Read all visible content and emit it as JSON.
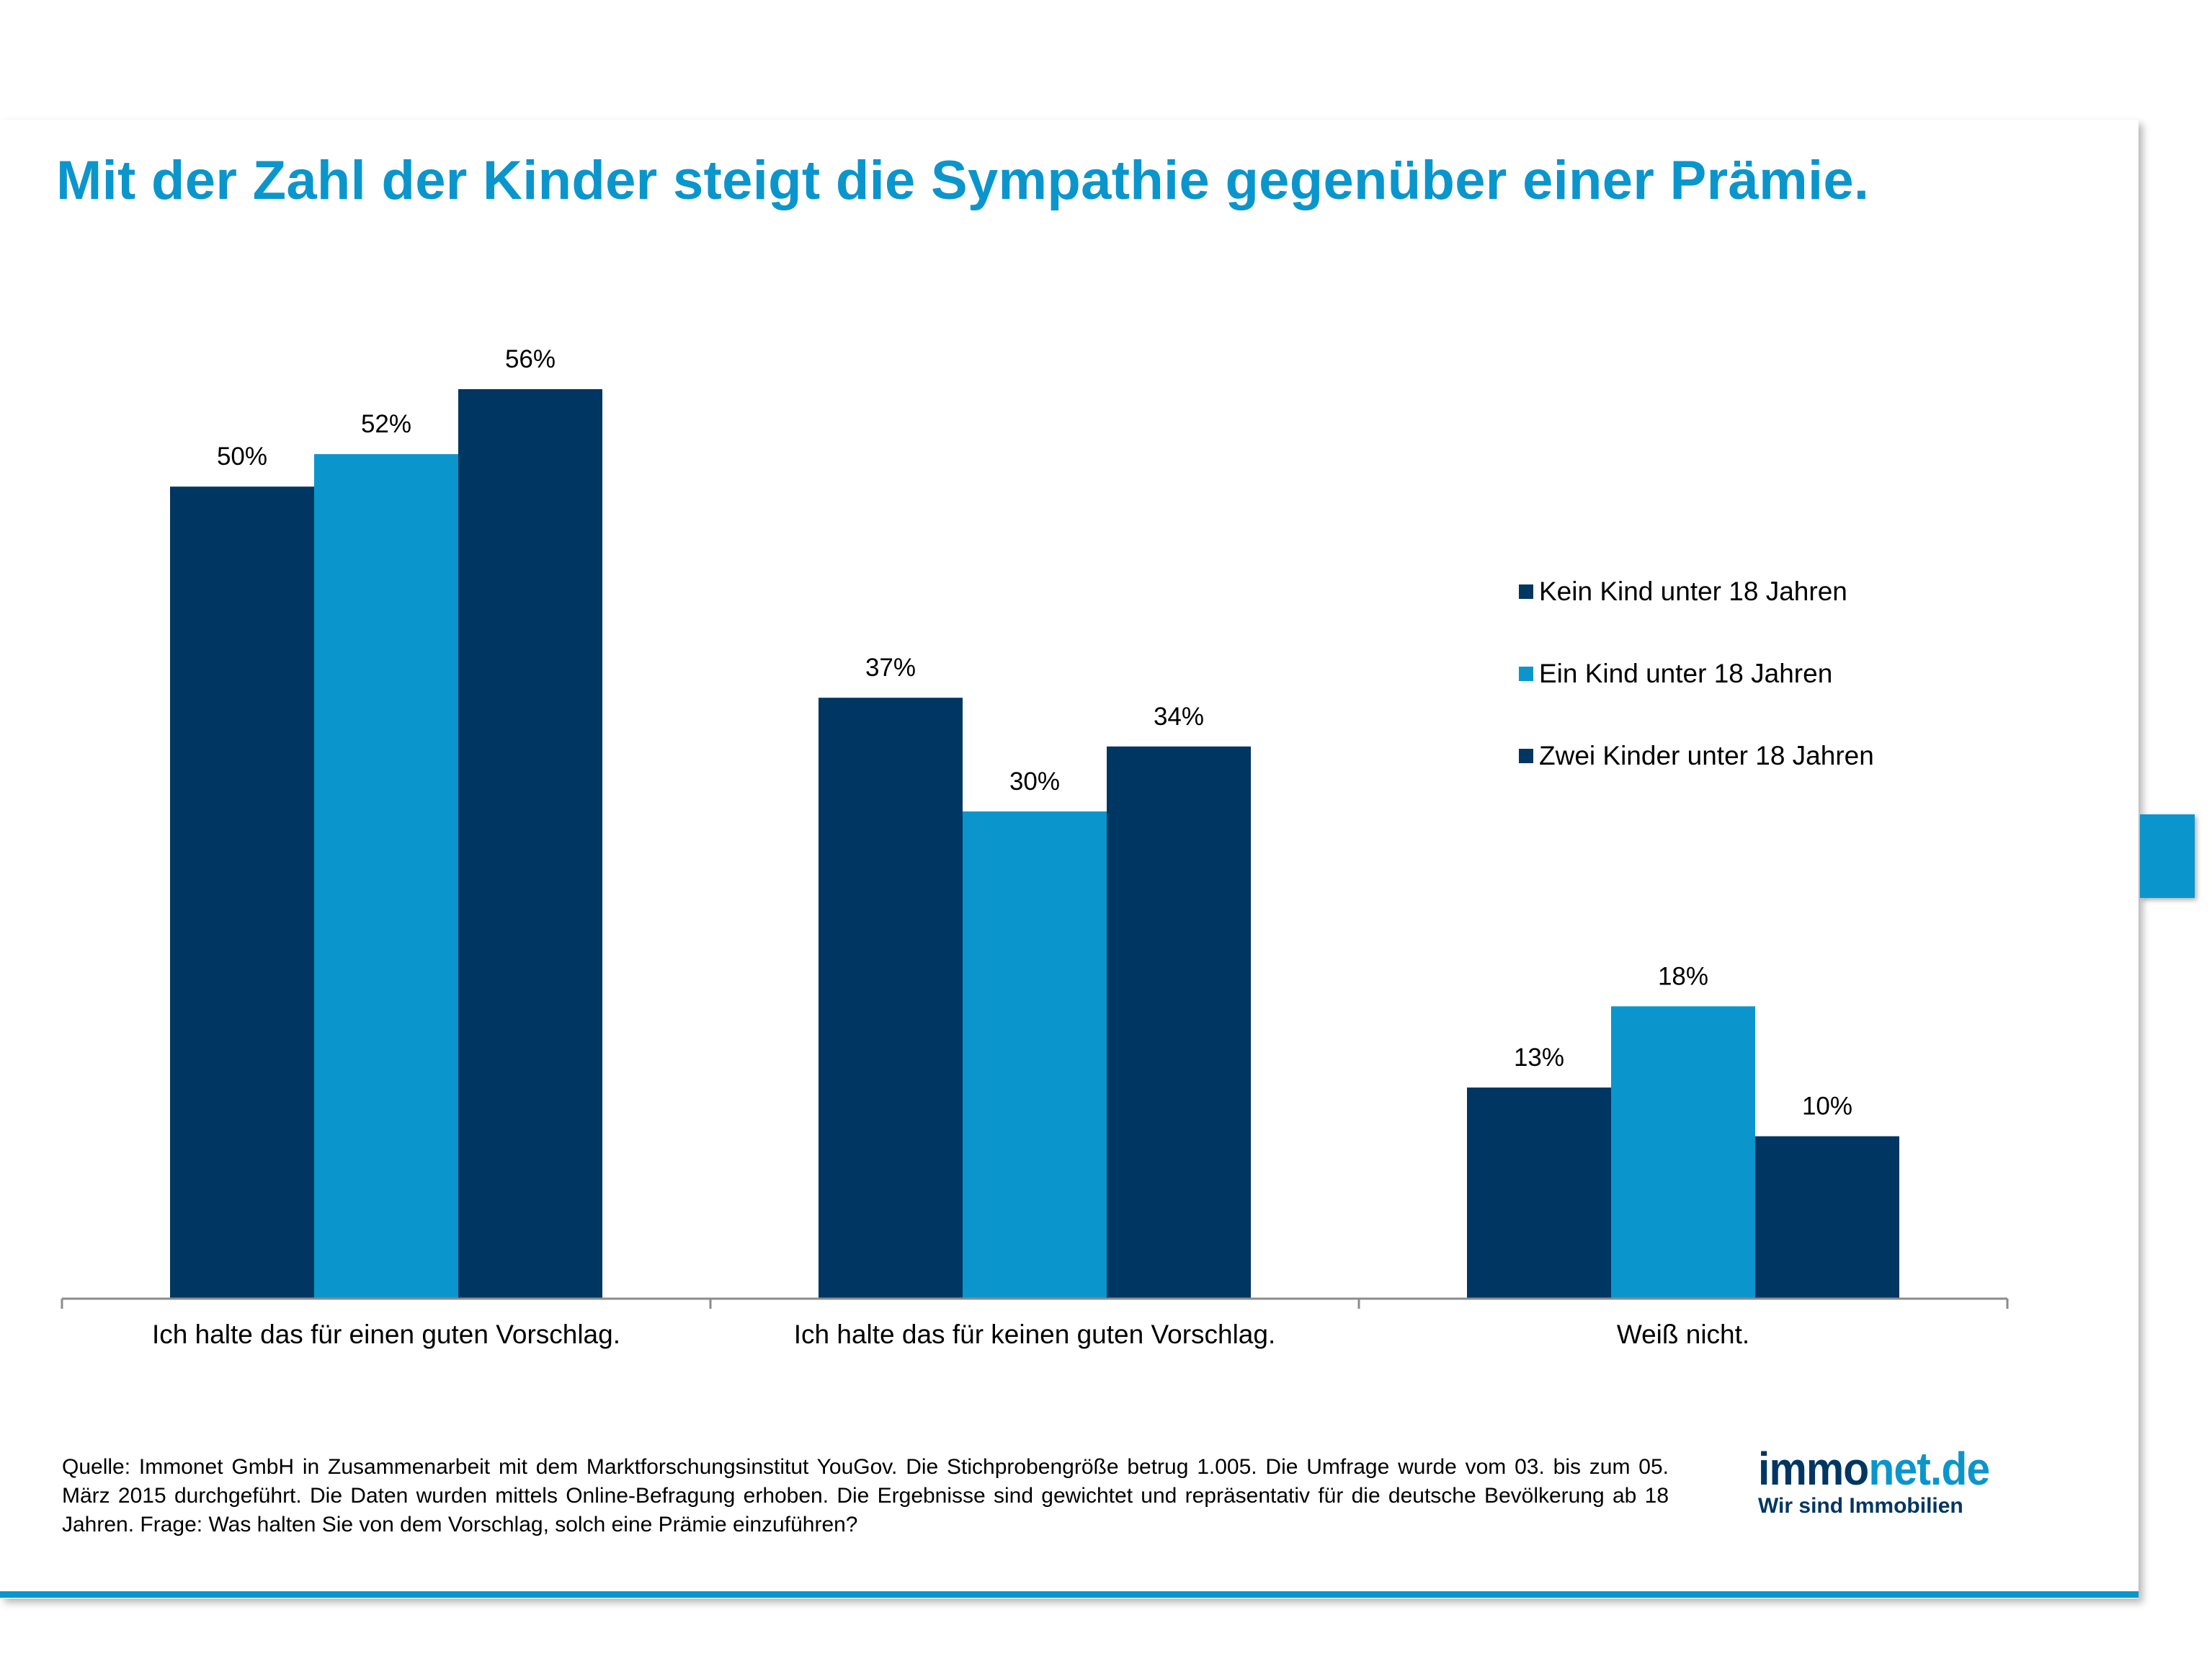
{
  "title": "Mit der Zahl der Kinder steigt die Sympathie gegenüber einer Prämie.",
  "source_note": "Quelle: Immonet GmbH in Zusammenarbeit mit dem Marktforschungsinstitut YouGov. Die Stichprobengröße betrug 1.005. Die Umfrage wurde vom 03. bis zum 05. März 2015 durchgeführt. Die Daten wurden mittels Online-Befragung erhoben. Die Ergebnisse sind gewichtet und repräsentativ für die deutsche Bevölkerung ab 18 Jahren. Frage: Was halten Sie von dem Vorschlag, solch eine Prämie einzuführen?",
  "logo": {
    "brand_part1": "immo",
    "brand_part2": "net.de",
    "tagline": "Wir sind Immobilien"
  },
  "colors": {
    "dark_blue": "#003662",
    "light_blue": "#0a96cc"
  },
  "chart_data": {
    "type": "bar",
    "title": "Mit der Zahl der Kinder steigt die Sympathie gegenüber einer Prämie.",
    "xlabel": "",
    "ylabel": "",
    "ylim": [
      0,
      60
    ],
    "grid": false,
    "legend_position": "right",
    "value_suffix": "%",
    "categories": [
      "Ich halte das für einen guten Vorschlag.",
      "Ich halte das für keinen guten Vorschlag.",
      "Weiß nicht."
    ],
    "series": [
      {
        "name": "Kein Kind unter 18 Jahren",
        "color": "#003662",
        "values": [
          50,
          37,
          13
        ]
      },
      {
        "name": "Ein Kind unter 18 Jahren",
        "color": "#0a96cc",
        "values": [
          52,
          30,
          18
        ]
      },
      {
        "name": "Zwei Kinder unter 18 Jahren",
        "color": "#003662",
        "values": [
          56,
          34,
          10
        ]
      }
    ]
  }
}
